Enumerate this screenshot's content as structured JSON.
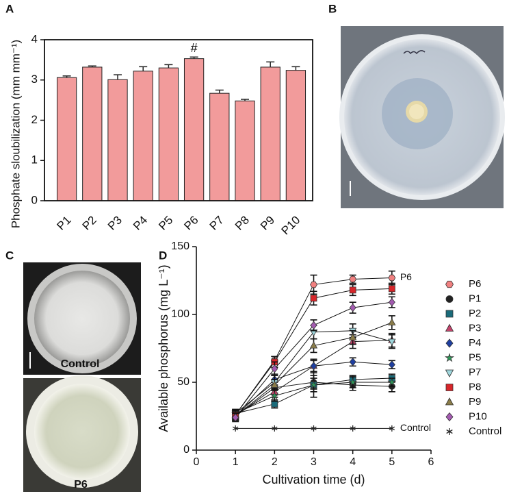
{
  "panel_labels": [
    "A",
    "B",
    "C",
    "D"
  ],
  "photos": {
    "top_label": "Control",
    "bottom_label": "P6"
  },
  "chart_data": [
    {
      "type": "bar",
      "ylabel": "Phosphate sloubilization (mm mm⁻¹)",
      "categories": [
        "P1",
        "P2",
        "P3",
        "P4",
        "P5",
        "P6",
        "P7",
        "P8",
        "P9",
        "P10"
      ],
      "values": [
        3.06,
        3.32,
        3.01,
        3.22,
        3.3,
        3.53,
        2.67,
        2.48,
        3.32,
        3.24
      ],
      "errors": [
        0.04,
        0.03,
        0.12,
        0.11,
        0.08,
        0.04,
        0.08,
        0.04,
        0.13,
        0.09
      ],
      "color": "#f29b9b",
      "ylim": [
        0,
        4
      ],
      "yticks": [
        0,
        1,
        2,
        3,
        4
      ],
      "annotations": [
        "#"
      ]
    },
    {
      "type": "line",
      "xlabel": "Cultivation time (d)",
      "ylabel": "Available phosphorus (mg L⁻¹)",
      "x": [
        1,
        2,
        3,
        4,
        5
      ],
      "xlim": [
        0,
        6
      ],
      "xticks": [
        0,
        1,
        2,
        3,
        4,
        5,
        6
      ],
      "ylim": [
        0,
        150
      ],
      "yticks": [
        0,
        50,
        100,
        150
      ],
      "legend": "right",
      "series": [
        {
          "name": "P6",
          "color": "#f08080",
          "marker": "hexagon",
          "values": [
            26,
            66,
            122,
            126,
            127
          ],
          "errors": [
            3,
            3,
            7,
            3,
            5
          ]
        },
        {
          "name": "P1",
          "color": "#222222",
          "marker": "circle",
          "values": [
            25,
            46,
            50,
            48,
            47
          ],
          "errors": [
            3,
            4,
            5,
            4,
            4
          ]
        },
        {
          "name": "P2",
          "color": "#1a6b7a",
          "marker": "square",
          "values": [
            27,
            34,
            48,
            52,
            53
          ],
          "errors": [
            3,
            3,
            5,
            3,
            3
          ]
        },
        {
          "name": "P3",
          "color": "#c2446b",
          "marker": "triangle",
          "values": [
            26,
            43,
            62,
            80,
            81
          ],
          "errors": [
            3,
            4,
            5,
            5,
            5
          ]
        },
        {
          "name": "P4",
          "color": "#1f3fa0",
          "marker": "diamond",
          "values": [
            25,
            52,
            62,
            65,
            63
          ],
          "errors": [
            3,
            4,
            4,
            3,
            3
          ]
        },
        {
          "name": "P5",
          "color": "#2e9a5a",
          "marker": "star",
          "values": [
            27,
            40,
            48,
            50,
            50
          ],
          "errors": [
            2,
            4,
            9,
            4,
            3
          ]
        },
        {
          "name": "P7",
          "color": "#9fd6dc",
          "marker": "triangle-down",
          "values": [
            27,
            50,
            87,
            88,
            80
          ],
          "errors": [
            3,
            5,
            5,
            5,
            5
          ]
        },
        {
          "name": "P8",
          "color": "#d8262a",
          "marker": "square",
          "values": [
            26,
            65,
            112,
            118,
            119
          ],
          "errors": [
            3,
            4,
            5,
            4,
            4
          ]
        },
        {
          "name": "P9",
          "color": "#8b7d4a",
          "marker": "triangle",
          "values": [
            25,
            48,
            77,
            83,
            94
          ],
          "errors": [
            3,
            4,
            5,
            5,
            5
          ]
        },
        {
          "name": "P10",
          "color": "#a35bb0",
          "marker": "diamond",
          "values": [
            24,
            60,
            92,
            105,
            109
          ],
          "errors": [
            3,
            5,
            4,
            4,
            4
          ]
        },
        {
          "name": "Control",
          "color": "#222222",
          "marker": "asterisk",
          "values": [
            16,
            16,
            16,
            16,
            16
          ]
        }
      ],
      "annotations": [
        "P6",
        "Control"
      ]
    }
  ]
}
